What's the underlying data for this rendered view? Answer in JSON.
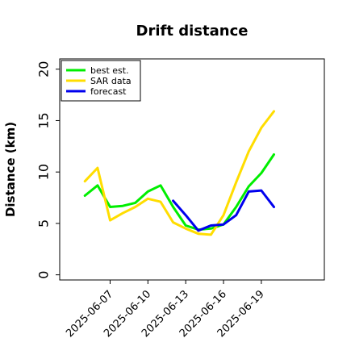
{
  "chart_data": {
    "type": "line",
    "title": "Drift distance",
    "xlabel": "",
    "ylabel": "Distance (km)",
    "x_type": "date",
    "xlim": [
      "2025-06-03",
      "2025-06-24"
    ],
    "ylim": [
      -0.5,
      21
    ],
    "x_ticks": [
      "2025-06-07",
      "2025-06-10",
      "2025-06-13",
      "2025-06-16",
      "2025-06-19"
    ],
    "y_ticks": [
      0,
      5,
      10,
      15,
      20
    ],
    "grid": false,
    "legend_position": "top-left",
    "series": [
      {
        "name": "best est.",
        "color": "#00ee00",
        "x": [
          "2025-06-05",
          "2025-06-06",
          "2025-06-07",
          "2025-06-08",
          "2025-06-09",
          "2025-06-10",
          "2025-06-11",
          "2025-06-12",
          "2025-06-13",
          "2025-06-14",
          "2025-06-15",
          "2025-06-16",
          "2025-06-17",
          "2025-06-18",
          "2025-06-19",
          "2025-06-20"
        ],
        "y": [
          7.7,
          8.7,
          6.6,
          6.7,
          7.0,
          8.1,
          8.7,
          6.6,
          4.8,
          4.4,
          4.5,
          4.9,
          6.6,
          8.6,
          9.9,
          11.7
        ]
      },
      {
        "name": "SAR data",
        "color": "#ffdd00",
        "x": [
          "2025-06-05",
          "2025-06-06",
          "2025-06-07",
          "2025-06-08",
          "2025-06-09",
          "2025-06-10",
          "2025-06-11",
          "2025-06-12",
          "2025-06-13",
          "2025-06-14",
          "2025-06-15",
          "2025-06-16",
          "2025-06-17",
          "2025-06-18",
          "2025-06-19",
          "2025-06-20"
        ],
        "y": [
          9.1,
          10.4,
          5.3,
          6.0,
          6.6,
          7.4,
          7.1,
          5.1,
          4.5,
          4.0,
          3.9,
          5.8,
          9.0,
          12.0,
          14.3,
          15.9
        ]
      },
      {
        "name": "forecast",
        "color": "#0000ee",
        "x": [
          "2025-06-12",
          "2025-06-13",
          "2025-06-14",
          "2025-06-15",
          "2025-06-16",
          "2025-06-17",
          "2025-06-18",
          "2025-06-19",
          "2025-06-20"
        ],
        "y": [
          7.2,
          5.8,
          4.3,
          4.8,
          4.9,
          5.8,
          8.1,
          8.2,
          6.6
        ]
      }
    ]
  }
}
